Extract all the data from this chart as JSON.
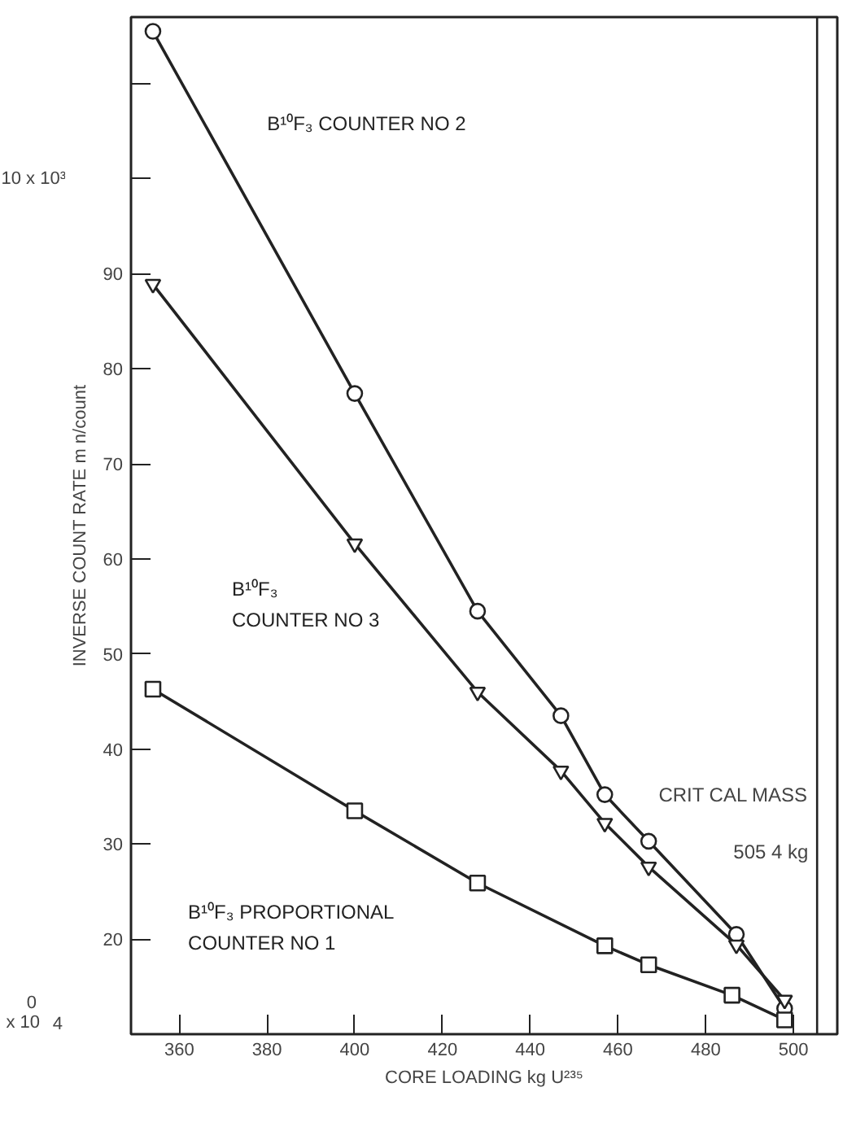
{
  "chart_data": {
    "type": "line",
    "xlabel": "CORE LOADING kg U²³⁵",
    "ylabel": "INVERSE COUNT RATE m n/count",
    "x": [
      354,
      400,
      428,
      447,
      457,
      467,
      487,
      498
    ],
    "series": [
      {
        "name": "B¹⁰F₃ COUNTER NO 2",
        "color": "#222222",
        "marker": "circle",
        "values": [
          115.5,
          77.4,
          54.5,
          43.5,
          35.2,
          30.3,
          20.5,
          12.7
        ]
      },
      {
        "name": "B¹⁰F₃ COUNTER NO 3",
        "color": "#222222",
        "marker": "triangle",
        "values": [
          88.9,
          61.6,
          46.0,
          37.7,
          32.2,
          27.6,
          19.4,
          13.6
        ]
      },
      {
        "name": "B¹⁰F₃ PROPORTIONAL COUNTER NO 1",
        "color": "#222222",
        "marker": "square",
        "x": [
          354,
          400,
          428,
          457,
          467,
          486,
          498
        ],
        "values": [
          46.3,
          33.5,
          25.9,
          19.3,
          17.3,
          14.1,
          11.5
        ]
      }
    ],
    "xlim": [
      349,
      510
    ],
    "xticks": [
      360,
      380,
      400,
      420,
      440,
      460,
      480,
      500
    ],
    "ylim": [
      10,
      117
    ],
    "yticks": [
      {
        "value": 10,
        "label": null
      },
      20,
      30,
      40,
      50,
      60,
      70,
      80,
      90,
      {
        "value": 100,
        "label": null
      },
      {
        "value": 110,
        "label": null
      }
    ],
    "ref_lines": [
      {
        "axis": "x",
        "value": 505.4,
        "label": "CRIT CAL MASS 505 4 kg"
      }
    ],
    "annotations": [
      "10 x 10³",
      "0",
      "x 10",
      "4"
    ],
    "grid": false,
    "line_style": "solid"
  }
}
